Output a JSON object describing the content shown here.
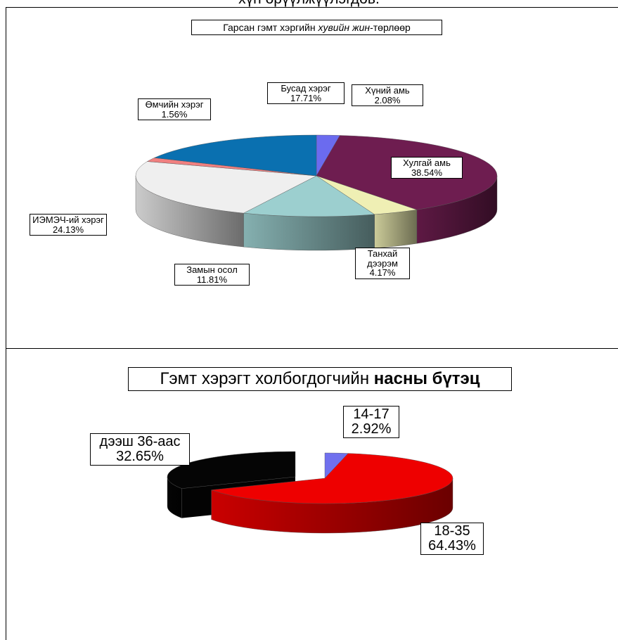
{
  "header": {
    "text": "хүн өрүүлжүүлэгдөв."
  },
  "chart_data": [
    {
      "type": "pie3d",
      "title": [
        "Гарсан гэмт хэргийн ",
        "хувийн жин",
        "-төрлөөр"
      ],
      "categories": [
        "Хүний амь",
        "Хулгай амь",
        "Танхай дээрэм",
        "Замын осол",
        "ИЭМЭЧ-ий хэрэг",
        "Өмчийн хэрэг",
        "Бусад хэрэг"
      ],
      "values": [
        2.08,
        38.54,
        4.17,
        11.81,
        24.13,
        1.56,
        17.71
      ],
      "value_labels": [
        "2.08%",
        "38.54%",
        "4.17%",
        "11.81%",
        "24.13%",
        "1.56%",
        "17.71%"
      ],
      "colors": [
        "#6b6bef",
        "#6e1d50",
        "#efefb4",
        "#9ccfcf",
        "#efefef",
        "#f08080",
        "#0a70b0"
      ]
    },
    {
      "type": "pie3d",
      "title": [
        "Гэмт хэрэгт холбогдогчийн ",
        "насны бүтэц"
      ],
      "categories": [
        "14-17",
        "18-35",
        "дээш 36-аас"
      ],
      "values": [
        2.92,
        64.43,
        32.65
      ],
      "value_labels": [
        "2.92%",
        "64.43%",
        "32.65%"
      ],
      "colors": [
        "#7070ee",
        "#ee0000",
        "#050505"
      ]
    }
  ]
}
